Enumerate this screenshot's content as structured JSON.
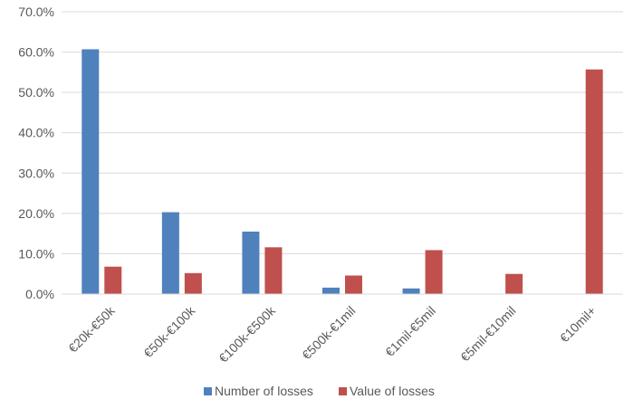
{
  "chart_data": {
    "type": "bar",
    "categories": [
      "€20k-€50k",
      "€50k-€100k",
      "€100k-€500k",
      "€500k-€1mil",
      "€1mil-€5mil",
      "€5mil-€10mil",
      "€10mil+"
    ],
    "series": [
      {
        "name": "Number of losses",
        "color": "#4f81bd",
        "values": [
          60.7,
          20.3,
          15.5,
          1.6,
          1.4,
          0.0,
          0.0
        ]
      },
      {
        "name": "Value of losses",
        "color": "#c0504d",
        "values": [
          6.8,
          5.2,
          11.6,
          4.6,
          10.9,
          5.0,
          55.7
        ]
      }
    ],
    "ylim": [
      0,
      70
    ],
    "yticks": [
      "0.0%",
      "10.0%",
      "20.0%",
      "30.0%",
      "40.0%",
      "50.0%",
      "60.0%",
      "70.0%"
    ],
    "ytick_values": [
      0,
      10,
      20,
      30,
      40,
      50,
      60,
      70
    ],
    "grid": true,
    "legend_position": "bottom"
  }
}
